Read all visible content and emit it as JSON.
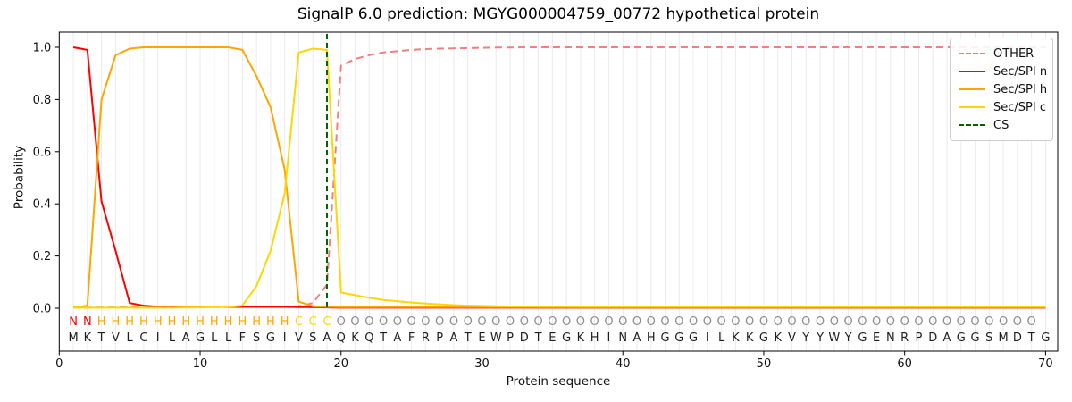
{
  "title": "SignalP 6.0 prediction: MGYG000004759_00772 hypothetical protein",
  "legend": {
    "entries": [
      {
        "label": "OTHER",
        "color": "#f08080",
        "dash": true
      },
      {
        "label": "Sec/SPI n",
        "color": "#ff0000",
        "dash": false
      },
      {
        "label": "Sec/SPI h",
        "color": "#ffa500",
        "dash": false
      },
      {
        "label": "Sec/SPI c",
        "color": "#ffd700",
        "dash": false
      },
      {
        "label": "CS",
        "color": "#006400",
        "dash": true
      }
    ]
  },
  "chart_data": {
    "type": "line",
    "title": "SignalP 6.0 prediction: MGYG000004759_00772 hypothetical protein",
    "xlabel": "Protein sequence",
    "ylabel": "Probability",
    "xlim": [
      0,
      70.9
    ],
    "ylim": [
      -0.17,
      1.05
    ],
    "xticks": [
      0,
      10,
      20,
      30,
      40,
      50,
      60,
      70
    ],
    "yticks": [
      "0.0",
      "0.2",
      "0.4",
      "0.6",
      "0.8",
      "1.0"
    ],
    "grid": "vertical line at every residue position 1-70",
    "legend_position": "upper-right",
    "x_positions": "residues 1 to 70",
    "series": [
      {
        "name": "OTHER",
        "color": "#f08080",
        "dash": true,
        "values": [
          0.002,
          0.002,
          0.003,
          0.003,
          0.004,
          0.004,
          0.004,
          0.004,
          0.004,
          0.004,
          0.004,
          0.004,
          0.005,
          0.005,
          0.005,
          0.006,
          0.008,
          0.02,
          0.09,
          0.93,
          0.955,
          0.97,
          0.98,
          0.985,
          0.99,
          0.993,
          0.995,
          0.996,
          0.997,
          0.998,
          0.999,
          0.999,
          1.0,
          1.0,
          1.0,
          1.0,
          1.0,
          1.0,
          1.0,
          1.0,
          1.0,
          1.0,
          1.0,
          1.0,
          1.0,
          1.0,
          1.0,
          1.0,
          1.0,
          1.0,
          1.0,
          1.0,
          1.0,
          1.0,
          1.0,
          1.0,
          1.0,
          1.0,
          1.0,
          1.0,
          1.0,
          1.0,
          1.0,
          1.0,
          1.0,
          1.0,
          1.0,
          1.0,
          1.0,
          1.0
        ]
      },
      {
        "name": "Sec/SPI n",
        "color": "#ff0000",
        "dash": false,
        "values": [
          1.0,
          0.99,
          0.41,
          0.22,
          0.02,
          0.01,
          0.006,
          0.005,
          0.005,
          0.005,
          0.005,
          0.005,
          0.005,
          0.005,
          0.005,
          0.005,
          0.004,
          0.004,
          0.003,
          0.002,
          0.002,
          0.002,
          0.002,
          0.002,
          0.002,
          0.002,
          0.002,
          0.002,
          0.002,
          0.002,
          0.002,
          0.002,
          0.002,
          0.002,
          0.002,
          0.002,
          0.002,
          0.002,
          0.002,
          0.002,
          0.002,
          0.002,
          0.002,
          0.002,
          0.002,
          0.002,
          0.002,
          0.002,
          0.002,
          0.002,
          0.002,
          0.002,
          0.002,
          0.002,
          0.002,
          0.002,
          0.002,
          0.002,
          0.002,
          0.002,
          0.002,
          0.002,
          0.002,
          0.002,
          0.002,
          0.002,
          0.002,
          0.002,
          0.002,
          0.002
        ]
      },
      {
        "name": "Sec/SPI h",
        "color": "#ffa500",
        "dash": false,
        "values": [
          0.003,
          0.01,
          0.8,
          0.97,
          0.995,
          1.0,
          1.0,
          1.0,
          1.0,
          1.0,
          1.0,
          1.0,
          0.99,
          0.89,
          0.77,
          0.53,
          0.025,
          0.008,
          0.005,
          0.004,
          0.004,
          0.004,
          0.004,
          0.004,
          0.004,
          0.004,
          0.004,
          0.004,
          0.004,
          0.004,
          0.004,
          0.004,
          0.004,
          0.004,
          0.004,
          0.004,
          0.004,
          0.004,
          0.004,
          0.004,
          0.004,
          0.004,
          0.004,
          0.004,
          0.004,
          0.004,
          0.004,
          0.004,
          0.004,
          0.004,
          0.004,
          0.004,
          0.004,
          0.004,
          0.004,
          0.004,
          0.004,
          0.004,
          0.004,
          0.004,
          0.004,
          0.004,
          0.004,
          0.004,
          0.004,
          0.004,
          0.004,
          0.004,
          0.004,
          0.004
        ]
      },
      {
        "name": "Sec/SPI c",
        "color": "#ffd700",
        "dash": false,
        "values": [
          0.002,
          0.002,
          0.002,
          0.002,
          0.002,
          0.002,
          0.002,
          0.002,
          0.003,
          0.003,
          0.004,
          0.005,
          0.01,
          0.085,
          0.22,
          0.44,
          0.98,
          0.995,
          0.99,
          0.06,
          0.05,
          0.04,
          0.032,
          0.027,
          0.022,
          0.018,
          0.015,
          0.012,
          0.01,
          0.009,
          0.008,
          0.007,
          0.007,
          0.006,
          0.006,
          0.006,
          0.005,
          0.005,
          0.005,
          0.005,
          0.005,
          0.005,
          0.005,
          0.005,
          0.005,
          0.005,
          0.005,
          0.005,
          0.005,
          0.005,
          0.005,
          0.005,
          0.005,
          0.005,
          0.005,
          0.005,
          0.005,
          0.005,
          0.005,
          0.005,
          0.005,
          0.005,
          0.005,
          0.005,
          0.005,
          0.005,
          0.005,
          0.005,
          0.005,
          0.005
        ]
      }
    ],
    "cs_line": {
      "name": "CS",
      "position": 19,
      "color": "#006400",
      "dash": true
    },
    "sequence": "MKTVLCILAGLLFSGIVSAQKQTAFRPATEWPDTEGKHINAHGGGILKKGKVYYWYGENRPDAGGSMDTG",
    "residue_labels": "NNHHHHHHHHHHHHHHCCCOOOOOOOOOOOOOOOOOOOOOOOOOOOOOOOOOOOOOOOOOOOOOOOOOO",
    "label_colors": {
      "N": "#ff0000",
      "H": "#ffa500",
      "C": "#ffd700",
      "O": "#8c8c8c"
    },
    "sequence_color": "#1f1f1f"
  }
}
